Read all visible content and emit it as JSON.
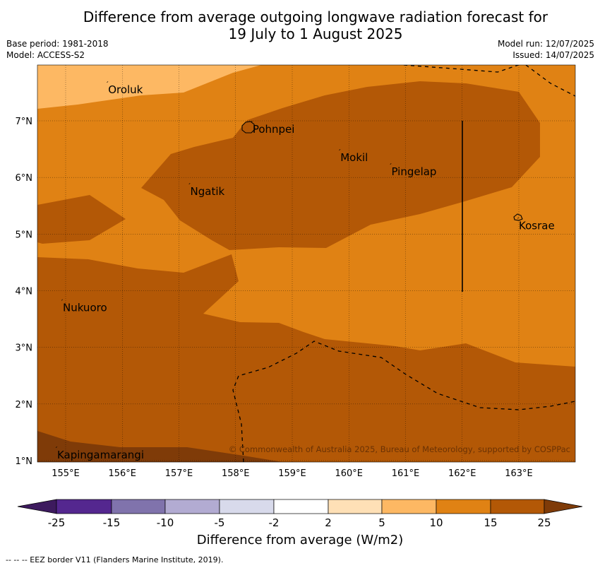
{
  "title": {
    "line1": "Difference from average outgoing longwave radiation forecast for",
    "line2": "19 July to 1 August 2025"
  },
  "meta": {
    "base_period": "Base period: 1981-2018",
    "model": "Model: ACCESS-S2",
    "model_run": "Model run: 12/07/2025",
    "issued": "Issued: 14/07/2025"
  },
  "map": {
    "lon_ticks": [
      "155°E",
      "156°E",
      "157°E",
      "158°E",
      "159°E",
      "160°E",
      "161°E",
      "162°E",
      "163°E"
    ],
    "lat_ticks": [
      "7°N",
      "6°N",
      "5°N",
      "4°N",
      "3°N",
      "2°N",
      "1°N"
    ],
    "places": [
      {
        "name": "Oroluk",
        "lon": 155.75,
        "lat": 7.55
      },
      {
        "name": "Pohnpei",
        "lon": 158.3,
        "lat": 6.85
      },
      {
        "name": "Mokil",
        "lon": 159.85,
        "lat": 6.35
      },
      {
        "name": "Pingelap",
        "lon": 160.75,
        "lat": 6.1
      },
      {
        "name": "Ngatik",
        "lon": 157.2,
        "lat": 5.75
      },
      {
        "name": "Kosrae",
        "lon": 163.0,
        "lat": 5.15
      },
      {
        "name": "Nukuoro",
        "lon": 154.95,
        "lat": 3.7
      },
      {
        "name": "Kapingamarangi",
        "lon": 154.85,
        "lat": 1.1
      }
    ],
    "copyright": "© Commonwealth of Australia 2025, Bureau of Meteorology, supported by COSPPac"
  },
  "colorbar": {
    "ticks": [
      "-25",
      "-15",
      "-10",
      "-5",
      "-2",
      "2",
      "5",
      "10",
      "15",
      "25"
    ],
    "colors": [
      "#3d1a5e",
      "#54278f",
      "#8073ac",
      "#b2abd2",
      "#d8daeb",
      "#ffffff",
      "#fee0b6",
      "#fdb863",
      "#e08214",
      "#b35806",
      "#7f3b08"
    ],
    "label": "Difference from average (W/m2)"
  },
  "footnote": "-- -- -- EEZ border V11 (Flanders Marine Institute, 2019)."
}
